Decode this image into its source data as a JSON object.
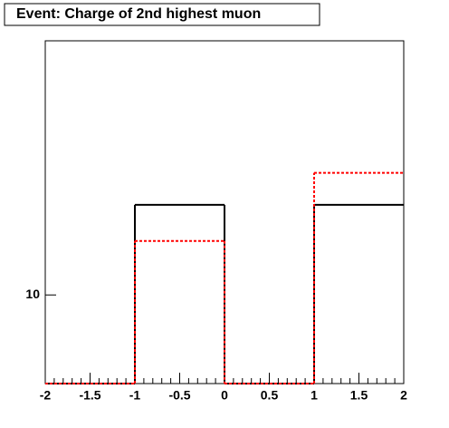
{
  "chart_data": {
    "type": "histogram",
    "title": "Event: Charge of 2nd highest muon",
    "bins": [
      -2,
      -1,
      0,
      1,
      2
    ],
    "series": [
      {
        "color": "#000000",
        "values": [
          0,
          15.5,
          0,
          15.5
        ]
      },
      {
        "color": "#ff0000",
        "values": [
          0,
          13,
          0,
          18.1
        ]
      }
    ],
    "xlim": [
      -2,
      2
    ],
    "xticks": [
      -2,
      -1.5,
      -1,
      -0.5,
      0,
      0.5,
      1,
      1.5,
      2
    ],
    "ylim": [
      6.5,
      34.4
    ],
    "yticks": [
      10
    ],
    "log_y": true
  }
}
